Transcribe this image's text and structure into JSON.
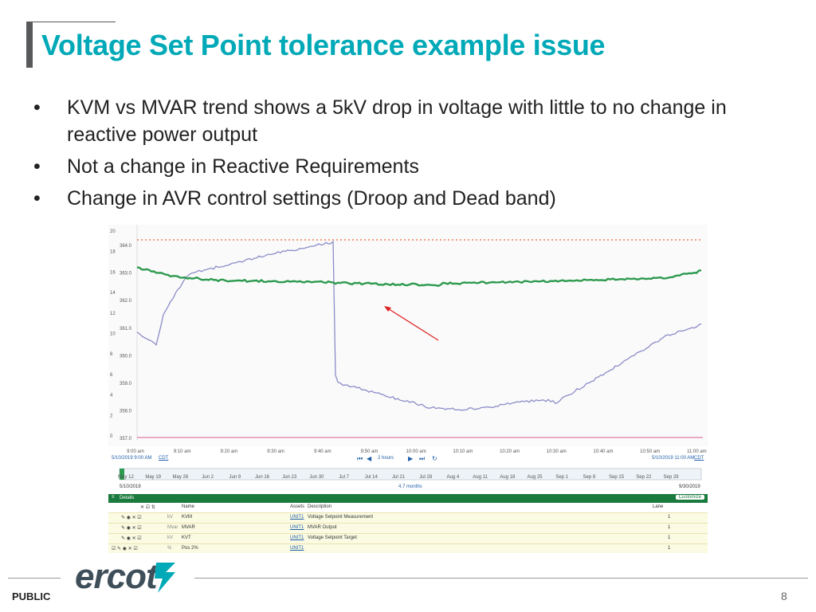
{
  "slide": {
    "title": "Voltage Set Point tolerance example issue",
    "bullets": [
      "KVM vs MVAR trend shows a 5kV drop in voltage with little to no change in reactive power output",
      "Not a change in Reactive Requirements",
      "Change in AVR control settings (Droop and Dead band)"
    ],
    "bullet_glyph": "•",
    "footer_label": "PUBLIC",
    "logo_text": "ercot",
    "page_number": "8"
  },
  "screenshot": {
    "left_axis_ticks": [
      "20",
      "18",
      "16",
      "14",
      "12",
      "10",
      "8",
      "6",
      "4",
      "2",
      "0"
    ],
    "right_axis_ticks": [
      "364.0",
      "363.0",
      "362.0",
      "361.0",
      "360.0",
      "359.0",
      "358.0",
      "357.0"
    ],
    "time_labels": [
      "9:00 am",
      "9:10 am",
      "9:20 am",
      "9:30 am",
      "9:40 am",
      "9:50 am",
      "10:00 am",
      "10:10 am",
      "10:20 am",
      "10:30 am",
      "10:40 am",
      "10:50 am",
      "11:00 am"
    ],
    "start_time": "5/10/2019 9:00 AM",
    "end_time": "5/10/2019 11:00 AM",
    "tz": "CDT",
    "range_label": "2 hours",
    "overview_dates": [
      "May 12",
      "May 19",
      "May 26",
      "Jun 2",
      "Jun 9",
      "Jun 16",
      "Jun 23",
      "Jun 30",
      "Jul 7",
      "Jul 14",
      "Jul 21",
      "Jul 28",
      "Aug 4",
      "Aug 11",
      "Aug 18",
      "Aug 25",
      "Sep 1",
      "Sep 8",
      "Sep 15",
      "Sep 22",
      "Sep 29"
    ],
    "overview_start": "5/10/2019",
    "overview_end": "9/30/2019",
    "overview_span": "4.7 months",
    "details_label": "Details",
    "customize_label": "Customize",
    "table_headers": {
      "name": "Name",
      "assets": "Assets",
      "description": "Description",
      "lane": "Lane"
    },
    "rows": [
      {
        "unit": "kV",
        "name": "KVM",
        "asset": "UNIT1",
        "description": "Voltage Setpoint Measurement",
        "lane": "1"
      },
      {
        "unit": "Mvar",
        "name": "MVAR",
        "asset": "UNIT1",
        "description": "MVAR Output",
        "lane": "1"
      },
      {
        "unit": "kV",
        "name": "KVT",
        "asset": "UNIT1",
        "description": "Voltage Setpoint Target",
        "lane": "1"
      },
      {
        "unit": "%",
        "name": "Pos 2%",
        "asset": "UNIT1",
        "description": "",
        "lane": "1"
      }
    ],
    "colors": {
      "mvar": "#2e9a4f",
      "kvm": "#8c8cc8",
      "target": "#f08050",
      "pos": "#e07aa6",
      "arrow": "#e02020",
      "details_bar": "#1b7a3d"
    }
  }
}
